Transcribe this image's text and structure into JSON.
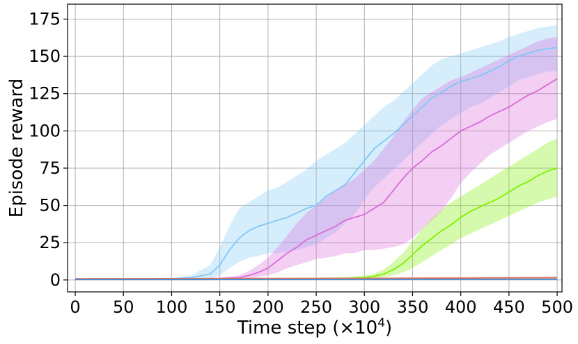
{
  "chart_data": {
    "type": "line",
    "title": "",
    "xlabel": "Time step (×10",
    "xlabel_sup": "4",
    "xlabel_close": ")",
    "ylabel": "Episode reward",
    "xlim": [
      -8,
      505
    ],
    "ylim": [
      -8,
      185
    ],
    "grid": true,
    "x_ticks": [
      0,
      50,
      100,
      150,
      200,
      250,
      300,
      350,
      400,
      450,
      500
    ],
    "y_ticks": [
      0,
      25,
      50,
      75,
      100,
      125,
      150,
      175
    ],
    "series": [
      {
        "color": "#7fc8f5",
        "x": [
          0,
          50,
          100,
          120,
          140,
          150,
          160,
          170,
          180,
          190,
          200,
          210,
          220,
          230,
          240,
          250,
          260,
          270,
          280,
          290,
          300,
          310,
          320,
          330,
          340,
          350,
          360,
          370,
          380,
          390,
          400,
          410,
          420,
          430,
          440,
          450,
          460,
          470,
          480,
          490,
          500
        ],
        "mean": [
          0.5,
          0.5,
          0.8,
          1.5,
          4,
          10,
          20,
          28,
          33,
          36,
          38,
          40,
          42,
          45,
          48,
          50,
          56,
          60,
          64,
          72,
          80,
          88,
          93,
          98,
          104,
          110,
          116,
          122,
          126,
          130,
          133,
          135,
          137,
          140,
          143,
          147,
          150,
          152,
          154,
          155,
          156
        ],
        "lower": [
          0,
          0,
          0.2,
          0.5,
          1,
          3,
          8,
          12,
          15,
          16,
          18,
          18,
          19,
          20,
          22,
          24,
          28,
          32,
          38,
          44,
          54,
          62,
          68,
          74,
          80,
          86,
          92,
          98,
          104,
          108,
          112,
          116,
          118,
          122,
          126,
          130,
          134,
          136,
          138,
          140,
          140
        ],
        "upper": [
          1,
          1,
          1.5,
          3,
          10,
          22,
          36,
          48,
          52,
          56,
          60,
          62,
          66,
          70,
          74,
          80,
          84,
          88,
          92,
          98,
          104,
          110,
          116,
          120,
          126,
          132,
          138,
          144,
          148,
          150,
          152,
          154,
          156,
          158,
          160,
          163,
          165,
          167,
          169,
          170,
          171
        ]
      },
      {
        "color": "#d96bd9",
        "x": [
          0,
          100,
          150,
          170,
          180,
          190,
          200,
          210,
          220,
          230,
          240,
          250,
          260,
          270,
          280,
          290,
          300,
          310,
          320,
          330,
          340,
          350,
          360,
          370,
          380,
          390,
          400,
          410,
          420,
          430,
          440,
          450,
          460,
          470,
          480,
          490,
          500
        ],
        "mean": [
          0.5,
          0.5,
          1,
          1.5,
          3,
          5,
          8,
          13,
          18,
          22,
          27,
          30,
          33,
          36,
          40,
          42,
          44,
          48,
          52,
          60,
          68,
          75,
          80,
          86,
          90,
          95,
          100,
          103,
          106,
          110,
          113,
          116,
          120,
          124,
          127,
          131,
          135
        ],
        "lower": [
          0,
          0,
          0.5,
          0.5,
          1,
          2,
          3,
          5,
          8,
          10,
          12,
          14,
          15,
          16,
          18,
          18,
          20,
          20,
          21,
          22,
          24,
          28,
          34,
          40,
          46,
          55,
          65,
          72,
          78,
          84,
          88,
          92,
          96,
          100,
          103,
          106,
          108
        ],
        "upper": [
          1,
          1,
          1.5,
          3,
          6,
          10,
          15,
          22,
          30,
          38,
          45,
          50,
          55,
          60,
          64,
          68,
          74,
          80,
          88,
          96,
          106,
          114,
          122,
          126,
          130,
          134,
          136,
          139,
          142,
          145,
          148,
          151,
          154,
          157,
          160,
          162,
          163
        ]
      },
      {
        "color": "#7ff000",
        "x": [
          0,
          100,
          200,
          250,
          280,
          300,
          310,
          320,
          330,
          340,
          350,
          360,
          370,
          380,
          390,
          400,
          410,
          420,
          430,
          440,
          450,
          460,
          470,
          480,
          490,
          500
        ],
        "mean": [
          0.5,
          0.5,
          0.5,
          0.8,
          1,
          1.5,
          2.5,
          4,
          7,
          11,
          17,
          23,
          28,
          33,
          37,
          42,
          46,
          49,
          52,
          55,
          59,
          63,
          66,
          70,
          73,
          75
        ],
        "lower": [
          0,
          0,
          0,
          0.3,
          0.5,
          0.8,
          1,
          2,
          3,
          5,
          8,
          12,
          16,
          20,
          24,
          28,
          31,
          34,
          37,
          40,
          43,
          46,
          49,
          52,
          54,
          56
        ],
        "upper": [
          1,
          1,
          1,
          1.5,
          2,
          3,
          4,
          7,
          12,
          18,
          26,
          34,
          41,
          47,
          52,
          56,
          60,
          64,
          68,
          72,
          76,
          80,
          84,
          88,
          92,
          95
        ]
      },
      {
        "color": "#e8705c",
        "x": [
          0,
          100,
          200,
          300,
          400,
          500
        ],
        "mean": [
          0.8,
          0.9,
          1,
          1.1,
          1.3,
          1.5
        ],
        "lower": [
          0.4,
          0.5,
          0.5,
          0.6,
          0.7,
          0.8
        ],
        "upper": [
          1.2,
          1.3,
          1.4,
          1.6,
          1.9,
          2.2
        ]
      },
      {
        "color": "#3c8fd8",
        "x": [
          0,
          100,
          200,
          300,
          400,
          500
        ],
        "mean": [
          0.3,
          0.3,
          0.4,
          0.4,
          0.5,
          0.5
        ],
        "lower": [
          0.1,
          0.1,
          0.2,
          0.2,
          0.2,
          0.2
        ],
        "upper": [
          0.5,
          0.5,
          0.6,
          0.6,
          0.7,
          0.8
        ]
      }
    ]
  }
}
